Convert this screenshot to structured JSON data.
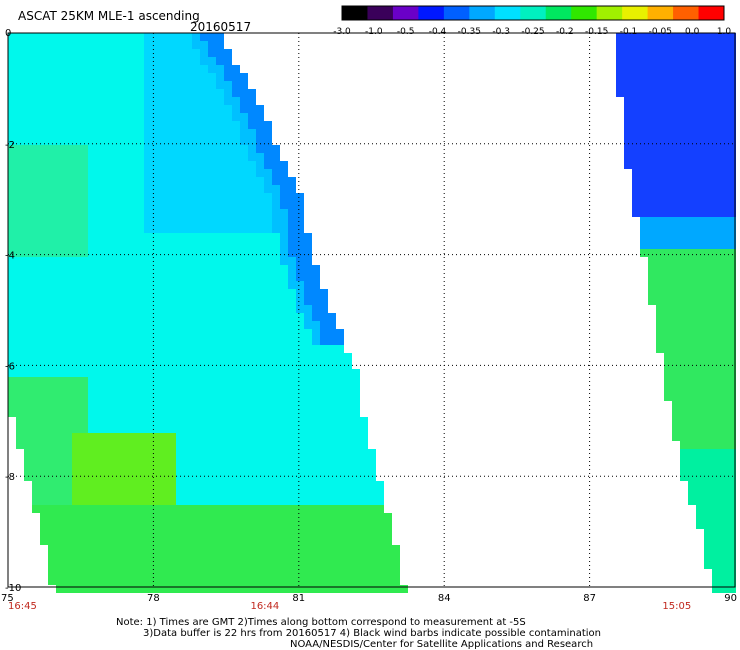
{
  "header": {
    "title": "ASCAT 25KM MLE-1 ascending",
    "date": "20160517"
  },
  "colorbar": {
    "colors": [
      "#000000",
      "#3a005a",
      "#6a00c8",
      "#0018ff",
      "#0060ff",
      "#00a8ff",
      "#00e0ff",
      "#00f0c0",
      "#00e860",
      "#30e800",
      "#a0f000",
      "#e8f000",
      "#ffb000",
      "#ff6000",
      "#ff0000"
    ],
    "labels": [
      "-3.0",
      "-1.0",
      "-0.5",
      "-0.4",
      "-0.35",
      "-0.3",
      "-0.25",
      "-0.2",
      "-0.15",
      "-0.1",
      "-0.05",
      "0.0",
      "1.0"
    ]
  },
  "axes": {
    "x_ticks": [
      "75",
      "78",
      "81",
      "84",
      "87",
      "90"
    ],
    "y_ticks": [
      "0",
      "-2",
      "-4",
      "-6",
      "-8",
      "-10"
    ],
    "xlim": [
      75,
      90
    ],
    "ylim": [
      -10,
      0
    ],
    "grid": true
  },
  "times": [
    {
      "label": "16:45",
      "lon": 75
    },
    {
      "label": "16:44",
      "lon": 80.3
    },
    {
      "label": "15:05",
      "lon": 88.8
    }
  ],
  "swaths": [
    {
      "edge_lon_by_lat": [
        [
          0,
          79.3
        ],
        [
          -1,
          80
        ],
        [
          -2,
          80.5
        ],
        [
          -3,
          81
        ],
        [
          -4,
          81.2
        ],
        [
          -5,
          81.6
        ],
        [
          -6,
          82.1
        ],
        [
          -7,
          82.3
        ],
        [
          -8,
          82.6
        ],
        [
          -9,
          82.9
        ],
        [
          -10,
          83.1
        ]
      ],
      "left_lon_by_lat": [
        [
          0,
          75
        ],
        [
          -6,
          75
        ],
        [
          -7,
          75.2
        ],
        [
          -8,
          75.5
        ],
        [
          -9,
          75.8
        ],
        [
          -10,
          76
        ]
      ],
      "base_color": "#00f8ec"
    },
    {
      "edge_lon_by_lat": [
        [
          0,
          87.6
        ],
        [
          -1,
          87.7
        ],
        [
          -2,
          87.8
        ],
        [
          -3,
          88
        ],
        [
          -4,
          88.2
        ],
        [
          -5,
          88.4
        ],
        [
          -6,
          88.6
        ],
        [
          -7,
          88.8
        ],
        [
          -8,
          89
        ],
        [
          -9,
          89.4
        ],
        [
          -10,
          89.6
        ]
      ],
      "base_color": "#00e860"
    }
  ],
  "notes": [
    "Note: 1) Times are GMT 2)Times along bottom correspond to measurement at -5S",
    "3)Data buffer is 22 hrs from 20160517 4) Black wind barbs indicate possible contamination",
    "NOAA/NESDIS/Center for Satellite Applications and Research"
  ]
}
